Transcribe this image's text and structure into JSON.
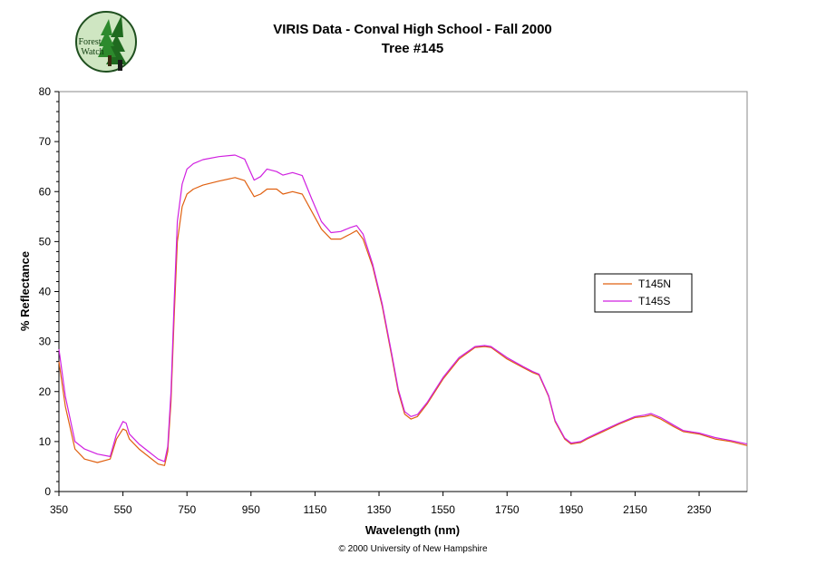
{
  "logo": {
    "line1": "Forest",
    "line2": "Watch"
  },
  "copyright": "© 2000 University of New Hampshire",
  "chart_data": {
    "type": "line",
    "title": "VIRIS Data - Conval High School - Fall 2000",
    "subtitle": "Tree #145",
    "xlabel": "Wavelength (nm)",
    "ylabel": "% Reflectance",
    "xlim": [
      350,
      2500
    ],
    "ylim": [
      0,
      80
    ],
    "xticks": [
      350,
      550,
      750,
      950,
      1150,
      1350,
      1550,
      1750,
      1950,
      2150,
      2350
    ],
    "yticks": [
      0,
      10,
      20,
      30,
      40,
      50,
      60,
      70,
      80
    ],
    "grid": false,
    "legend_position": "right",
    "series": [
      {
        "name": "T145N",
        "color": "#e06010",
        "x": [
          350,
          370,
          400,
          430,
          470,
          510,
          530,
          550,
          560,
          570,
          600,
          630,
          660,
          680,
          690,
          700,
          710,
          720,
          735,
          750,
          770,
          800,
          850,
          900,
          930,
          960,
          980,
          1000,
          1030,
          1050,
          1080,
          1110,
          1140,
          1170,
          1200,
          1230,
          1260,
          1280,
          1300,
          1330,
          1360,
          1390,
          1410,
          1430,
          1450,
          1470,
          1500,
          1550,
          1600,
          1650,
          1680,
          1700,
          1750,
          1800,
          1830,
          1850,
          1880,
          1900,
          1930,
          1950,
          1980,
          2000,
          2050,
          2100,
          2150,
          2180,
          2200,
          2230,
          2270,
          2300,
          2350,
          2400,
          2450,
          2500
        ],
        "y": [
          26,
          17,
          8.5,
          6.5,
          5.8,
          6.5,
          10.5,
          12.5,
          12.2,
          10.5,
          8.5,
          7,
          5.5,
          5.2,
          8,
          18,
          35,
          50,
          57,
          59.5,
          60.5,
          61.3,
          62.1,
          62.8,
          62.2,
          59.0,
          59.5,
          60.5,
          60.5,
          59.5,
          60.0,
          59.5,
          56,
          52.5,
          50.5,
          50.5,
          51.5,
          52.2,
          50.5,
          45,
          37,
          27,
          20,
          15.5,
          14.5,
          15,
          17.5,
          22.5,
          26.5,
          28.8,
          29,
          28.8,
          26.5,
          24.8,
          23.8,
          23.3,
          19,
          14,
          10.5,
          9.5,
          9.8,
          10.5,
          12,
          13.5,
          14.8,
          15,
          15.3,
          14.5,
          13,
          12,
          11.5,
          10.5,
          10,
          9.2
        ]
      },
      {
        "name": "T145S",
        "color": "#d020e0",
        "x": [
          350,
          370,
          400,
          430,
          470,
          510,
          530,
          550,
          560,
          570,
          600,
          630,
          660,
          680,
          690,
          700,
          710,
          720,
          735,
          750,
          770,
          800,
          850,
          900,
          930,
          960,
          980,
          1000,
          1030,
          1050,
          1080,
          1110,
          1140,
          1170,
          1200,
          1230,
          1260,
          1280,
          1300,
          1330,
          1360,
          1390,
          1410,
          1430,
          1450,
          1470,
          1500,
          1550,
          1600,
          1650,
          1680,
          1700,
          1750,
          1800,
          1830,
          1850,
          1880,
          1900,
          1930,
          1950,
          1980,
          2000,
          2050,
          2100,
          2150,
          2180,
          2200,
          2230,
          2270,
          2300,
          2350,
          2400,
          2450,
          2500
        ],
        "y": [
          28.5,
          19,
          10,
          8.5,
          7.5,
          7,
          11.5,
          14.0,
          13.7,
          11.5,
          9.5,
          8,
          6.5,
          6.0,
          9,
          20,
          38,
          54,
          61.5,
          64.5,
          65.6,
          66.4,
          67.0,
          67.3,
          66.5,
          62.3,
          63.0,
          64.5,
          64.0,
          63.3,
          63.8,
          63.2,
          58.5,
          54.0,
          51.8,
          52.0,
          52.8,
          53.2,
          51.5,
          45.5,
          37.5,
          27.5,
          20.5,
          16,
          15,
          15.4,
          17.8,
          22.8,
          26.8,
          29,
          29.2,
          29,
          26.8,
          25,
          24,
          23.5,
          19.2,
          14.2,
          10.7,
          9.7,
          10,
          10.7,
          12.2,
          13.7,
          15,
          15.3,
          15.6,
          14.8,
          13.3,
          12.2,
          11.7,
          10.8,
          10.2,
          9.5
        ]
      }
    ]
  }
}
